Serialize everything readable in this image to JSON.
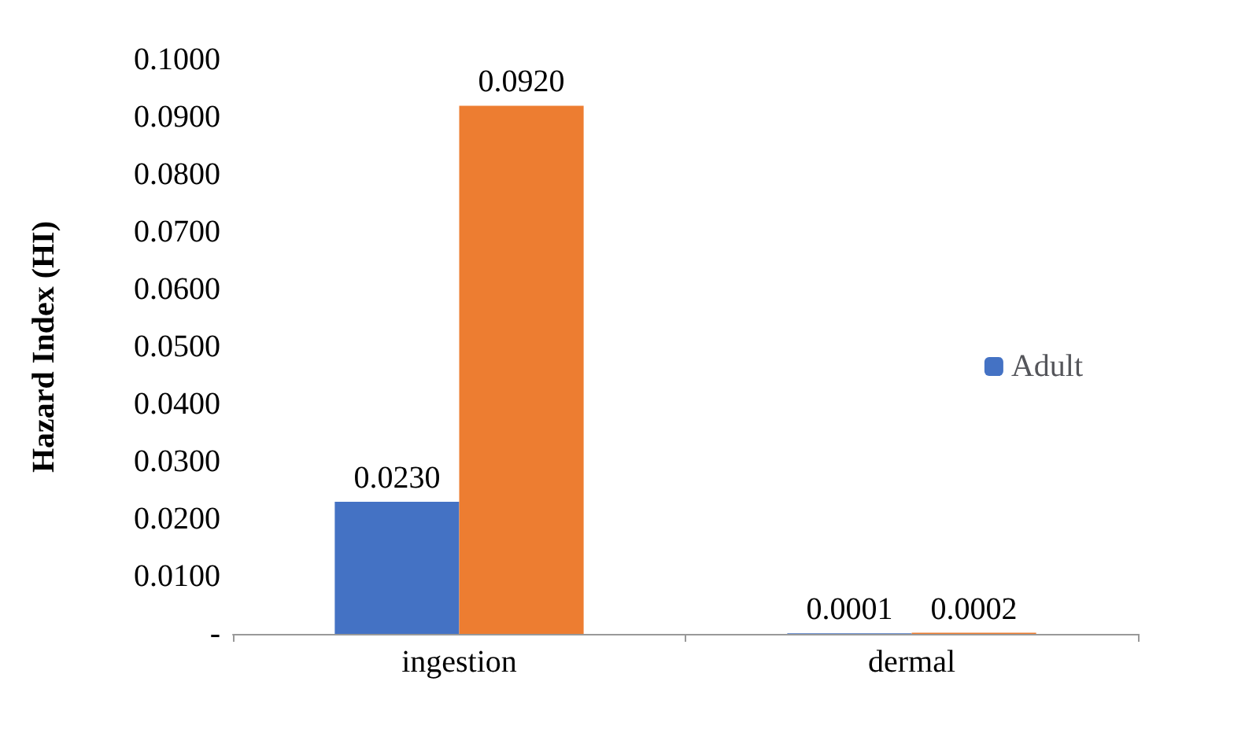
{
  "chart_data": {
    "type": "bar",
    "ylabel": "Hazard Index (HI)",
    "categories": [
      "ingestion",
      "dermal"
    ],
    "series": [
      {
        "name": "Adult",
        "color": "#4472c4",
        "values": [
          0.023,
          0.0001
        ],
        "value_labels": [
          "0.0230",
          "0.0001"
        ]
      },
      {
        "color": "#ed7d31",
        "values": [
          0.092,
          0.0002
        ],
        "value_labels": [
          "0.0920",
          "0.0002"
        ]
      }
    ],
    "ylim": [
      0,
      0.1
    ],
    "yticks": [
      {
        "value": 0,
        "label": "-"
      },
      {
        "value": 0.01,
        "label": "0.0100"
      },
      {
        "value": 0.02,
        "label": "0.0200"
      },
      {
        "value": 0.03,
        "label": "0.0300"
      },
      {
        "value": 0.04,
        "label": "0.0400"
      },
      {
        "value": 0.05,
        "label": "0.0500"
      },
      {
        "value": 0.06,
        "label": "0.0600"
      },
      {
        "value": 0.07,
        "label": "0.0700"
      },
      {
        "value": 0.08,
        "label": "0.0800"
      },
      {
        "value": 0.09,
        "label": "0.0900"
      },
      {
        "value": 0.1,
        "label": "0.1000"
      }
    ],
    "grid": false,
    "legend": "right"
  }
}
